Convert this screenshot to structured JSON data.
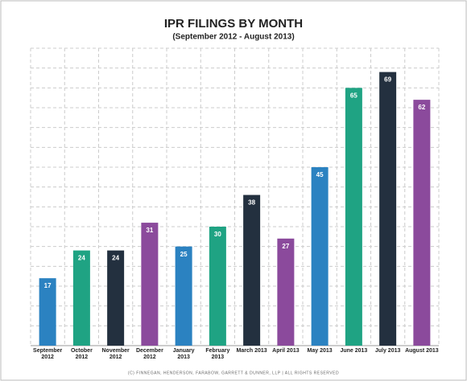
{
  "chart_data": {
    "type": "bar",
    "title": "IPR FILINGS BY MONTH",
    "subtitle": "(September 2012 - August 2013)",
    "categories": [
      "September 2012",
      "October 2012",
      "November 2012",
      "December 2012",
      "January 2013",
      "February 2013",
      "March 2013",
      "April 2013",
      "May 2013",
      "June 2013",
      "July 2013",
      "August 2013"
    ],
    "values": [
      17,
      24,
      24,
      31,
      25,
      30,
      38,
      27,
      45,
      65,
      69,
      62
    ],
    "colors": [
      "#2b82c1",
      "#1fa383",
      "#23303f",
      "#8b4a9c",
      "#2b82c1",
      "#1fa383",
      "#23303f",
      "#8b4a9c",
      "#2b82c1",
      "#1fa383",
      "#23303f",
      "#8b4a9c"
    ],
    "ylim": [
      0,
      75
    ],
    "yticks": [
      0,
      5,
      10,
      15,
      20,
      25,
      30,
      35,
      40,
      45,
      50,
      55,
      60,
      65,
      70,
      75
    ],
    "grid": true,
    "footer": "(C) FINNEGAN, HENDERSON, FARABOW, GARRETT & DUNNER, LLP | ALL RIGHTS RESERVED"
  }
}
